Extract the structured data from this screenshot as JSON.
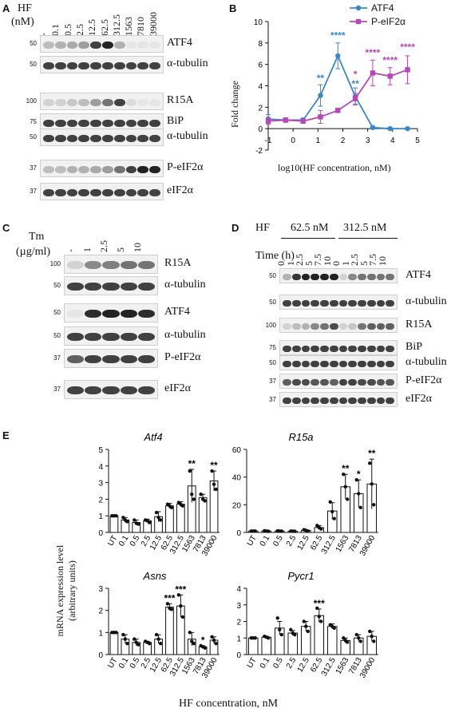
{
  "panels": {
    "A": "A",
    "B": "B",
    "C": "C",
    "D": "D",
    "E": "E"
  },
  "panelA": {
    "hf_label": "HF",
    "unit_label": "(nM)",
    "lanes": [
      "-",
      "0.1",
      "0.5",
      "2.5",
      "12.5",
      "62.5",
      "312.5",
      "1563",
      "7810",
      "39000"
    ],
    "blots": [
      {
        "name": "ATF4",
        "mw": "50",
        "bands": [
          0.25,
          0.3,
          0.35,
          0.4,
          0.85,
          1.0,
          0.3,
          0.05,
          0.05,
          0.05
        ]
      },
      {
        "name": "α-tubulin",
        "mw": "50",
        "bands": [
          0.85,
          0.85,
          0.85,
          0.85,
          0.85,
          0.85,
          0.85,
          0.85,
          0.85,
          0.85
        ]
      },
      {
        "name": "R15A",
        "mw": "100",
        "bands": [
          0.15,
          0.15,
          0.2,
          0.25,
          0.4,
          0.6,
          0.85,
          0.1,
          0.05,
          0.05
        ]
      },
      {
        "name": "BiP",
        "mw": "75",
        "bands": [
          0.85,
          0.85,
          0.85,
          0.85,
          0.85,
          0.85,
          0.85,
          0.85,
          0.85,
          0.85
        ]
      },
      {
        "name": "α-tubulin",
        "mw": "50",
        "bands": [
          0.85,
          0.85,
          0.85,
          0.85,
          0.85,
          0.85,
          0.85,
          0.85,
          0.85,
          0.85
        ]
      },
      {
        "name": "P-eIF2α",
        "mw": "37",
        "bands": [
          0.25,
          0.25,
          0.3,
          0.3,
          0.35,
          0.4,
          0.6,
          0.85,
          1.0,
          1.0
        ]
      },
      {
        "name": "eIF2α",
        "mw": "37",
        "bands": [
          0.85,
          0.85,
          0.85,
          0.85,
          0.85,
          0.85,
          0.85,
          0.85,
          0.85,
          0.85
        ]
      }
    ]
  },
  "panelC": {
    "tm_label": "Tm",
    "unit_label": "(µg/ml)",
    "lanes": [
      "-",
      "1",
      "2.5",
      "5",
      "10"
    ],
    "blots": [
      {
        "name": "R15A",
        "mw": "100",
        "bands": [
          0.15,
          0.5,
          0.55,
          0.6,
          0.6
        ]
      },
      {
        "name": "α-tubulin",
        "mw": "50",
        "bands": [
          0.85,
          0.85,
          0.85,
          0.85,
          0.85
        ]
      },
      {
        "name": "ATF4",
        "mw": "50",
        "bands": [
          0.05,
          0.95,
          1.0,
          1.0,
          0.95
        ]
      },
      {
        "name": "α-tubulin",
        "mw": "50",
        "bands": [
          0.85,
          0.85,
          0.85,
          0.85,
          0.85
        ]
      },
      {
        "name": "P-eIF2α",
        "mw": "37",
        "bands": [
          0.7,
          0.85,
          0.85,
          0.85,
          0.85
        ]
      },
      {
        "name": "eIF2α",
        "mw": "37",
        "bands": [
          0.85,
          0.85,
          0.85,
          0.85,
          0.85
        ]
      }
    ]
  },
  "panelD": {
    "hf_label": "HF",
    "group1": "62.5 nM",
    "group2": "312.5 nM",
    "time_label": "Time (h)",
    "lanes": [
      "0",
      "1",
      "2.5",
      "5",
      "7.5",
      "10",
      "0",
      "1",
      "2.5",
      "5",
      "7.5",
      "10"
    ],
    "blots": [
      {
        "name": "ATF4",
        "mw": "50",
        "bands": [
          0.3,
          0.9,
          1.0,
          1.0,
          1.0,
          1.0,
          0.15,
          0.5,
          0.6,
          0.6,
          0.6,
          0.6
        ]
      },
      {
        "name": "α-tubulin",
        "mw": "50",
        "bands": [
          0.85,
          0.85,
          0.85,
          0.85,
          0.85,
          0.85,
          0.85,
          0.85,
          0.85,
          0.85,
          0.85,
          0.85
        ]
      },
      {
        "name": "R15A",
        "mw": "100",
        "bands": [
          0.15,
          0.25,
          0.3,
          0.5,
          0.6,
          0.8,
          0.15,
          0.2,
          0.6,
          0.7,
          0.7,
          0.7
        ]
      },
      {
        "name": "BiP",
        "mw": "75",
        "bands": [
          0.85,
          0.85,
          0.85,
          0.85,
          0.85,
          0.85,
          0.85,
          0.85,
          0.85,
          0.85,
          0.85,
          0.85
        ]
      },
      {
        "name": "α-tubulin",
        "mw": "50",
        "bands": [
          0.85,
          0.85,
          0.85,
          0.85,
          0.85,
          0.85,
          0.85,
          0.85,
          0.85,
          0.85,
          0.85,
          0.85
        ]
      },
      {
        "name": "P-eIF2α",
        "mw": "37",
        "bands": [
          0.7,
          0.8,
          0.8,
          0.75,
          0.75,
          0.7,
          0.85,
          0.85,
          0.8,
          0.8,
          0.75,
          0.75
        ]
      },
      {
        "name": "eIF2α",
        "mw": "37",
        "bands": [
          0.85,
          0.85,
          0.85,
          0.85,
          0.85,
          0.85,
          0.85,
          0.85,
          0.85,
          0.85,
          0.85,
          0.85
        ]
      }
    ]
  },
  "panelE": {
    "ylabel": "mRNA expression level\n(arbitrary units)",
    "xlabel": "HF concentration, nM"
  },
  "chart_data": [
    {
      "type": "line",
      "panel": "B",
      "xlabel": "log10(HF concentration, nM)",
      "ylabel": "Fold change",
      "xlim": [
        -1,
        5
      ],
      "ylim": [
        -2,
        10
      ],
      "xticks": [
        "-1",
        "0",
        "1",
        "2",
        "3",
        "4",
        "5"
      ],
      "yticks": [
        "-2",
        "0",
        "2",
        "4",
        "6",
        "8",
        "10"
      ],
      "legend_position": "top-right",
      "series": [
        {
          "name": "ATF4",
          "color": "#3a86c8",
          "x": [
            -1,
            -0.3,
            0.4,
            1.1,
            1.8,
            2.5,
            3.2,
            3.9,
            4.6
          ],
          "y": [
            0.9,
            0.8,
            0.8,
            3.1,
            6.8,
            3.0,
            0.1,
            0.0,
            0.0
          ],
          "err": [
            0.4,
            0.2,
            0.2,
            1.0,
            1.2,
            0.8,
            0.1,
            0.1,
            0.1
          ]
        },
        {
          "name": "P-eIF2α",
          "color": "#b548b3",
          "x": [
            -1,
            -0.3,
            0.4,
            1.1,
            1.8,
            2.5,
            3.2,
            3.9,
            4.6
          ],
          "y": [
            0.7,
            0.8,
            0.7,
            1.1,
            1.7,
            2.8,
            5.2,
            4.9,
            5.5
          ],
          "err": [
            0.3,
            0.2,
            0.2,
            0.6,
            0.2,
            0.5,
            1.2,
            0.8,
            1.3
          ]
        }
      ],
      "annotations": [
        {
          "text": "**",
          "series": "ATF4",
          "x": 1.1,
          "y": 4.4
        },
        {
          "text": "****",
          "series": "ATF4",
          "x": 1.8,
          "y": 8.4
        },
        {
          "text": "**",
          "series": "ATF4",
          "x": 2.5,
          "y": 3.9
        },
        {
          "text": "*",
          "series": "P-eIF2α",
          "x": 2.5,
          "y": 4.8
        },
        {
          "text": "****",
          "series": "P-eIF2α",
          "x": 3.2,
          "y": 6.8
        },
        {
          "text": "****",
          "series": "P-eIF2α",
          "x": 3.9,
          "y": 6.1
        },
        {
          "text": "****",
          "series": "P-eIF2α",
          "x": 4.6,
          "y": 7.3
        }
      ]
    },
    {
      "type": "bar",
      "panel": "E",
      "title": "Atf4",
      "categories": [
        "UT",
        "0.1",
        "0.5",
        "2.5",
        "12.5",
        "62.5",
        "312.5",
        "1563",
        "7813",
        "39000"
      ],
      "values": [
        1.0,
        0.75,
        0.6,
        0.7,
        0.95,
        1.6,
        1.7,
        2.8,
        2.1,
        3.1
      ],
      "err": [
        0.05,
        0.15,
        0.15,
        0.1,
        0.3,
        0.15,
        0.15,
        1.0,
        0.2,
        0.6
      ],
      "points": [
        [
          1.0,
          1.0,
          1.0
        ],
        [
          0.9,
          0.75,
          0.65
        ],
        [
          0.75,
          0.55,
          0.5
        ],
        [
          0.75,
          0.7,
          0.6
        ],
        [
          1.2,
          0.9,
          0.75
        ],
        [
          1.7,
          1.6,
          1.5
        ],
        [
          1.8,
          1.7,
          1.6
        ],
        [
          3.7,
          2.3,
          2.0
        ],
        [
          2.3,
          2.0,
          1.9
        ],
        [
          3.7,
          2.9,
          2.6
        ]
      ],
      "ylim": [
        0,
        5
      ],
      "yticks": [
        "0",
        "1",
        "2",
        "3",
        "4",
        "5"
      ],
      "significance": [
        "",
        "",
        "",
        "",
        "",
        "",
        "",
        "**",
        "",
        "**"
      ]
    },
    {
      "type": "bar",
      "panel": "E",
      "title": "R15a",
      "categories": [
        "UT",
        "0.1",
        "0.5",
        "2.5",
        "12.5",
        "62.5",
        "312.5",
        "1563",
        "7813",
        "39000"
      ],
      "values": [
        1.0,
        1.0,
        1.0,
        0.9,
        1.5,
        3.5,
        15.5,
        33.0,
        28.0,
        35.0
      ],
      "err": [
        0.2,
        0.2,
        0.2,
        0.2,
        0.5,
        1.5,
        6.0,
        9.0,
        10.0,
        18.0
      ],
      "points": [
        [
          1.0,
          1.0,
          1.0
        ],
        [
          1.2,
          1.0,
          0.8
        ],
        [
          1.1,
          1.0,
          0.9
        ],
        [
          1.0,
          0.9,
          0.8
        ],
        [
          2.0,
          1.5,
          1.0
        ],
        [
          5.0,
          3.5,
          2.5
        ],
        [
          22.0,
          15.0,
          10.0
        ],
        [
          42.0,
          33.0,
          24.0
        ],
        [
          38.0,
          28.0,
          18.0
        ],
        [
          50.0,
          35.0,
          20.0
        ]
      ],
      "ylim": [
        0,
        60
      ],
      "yticks": [
        "0",
        "20",
        "40",
        "60"
      ],
      "significance": [
        "",
        "",
        "",
        "",
        "",
        "",
        "",
        "**",
        "*",
        "**"
      ]
    },
    {
      "type": "bar",
      "panel": "E",
      "title": "Asns",
      "categories": [
        "UT",
        "0.1",
        "0.5",
        "2.5",
        "12.5",
        "62.5",
        "312.5",
        "1563",
        "7813",
        "39000"
      ],
      "values": [
        1.0,
        0.7,
        0.55,
        0.55,
        0.7,
        2.15,
        2.2,
        0.7,
        0.35,
        0.65
      ],
      "err": [
        0.03,
        0.2,
        0.15,
        0.05,
        0.2,
        0.15,
        0.5,
        0.3,
        0.05,
        0.15
      ],
      "points": [
        [
          1.0,
          1.0,
          1.0
        ],
        [
          0.9,
          0.7,
          0.5
        ],
        [
          0.7,
          0.55,
          0.45
        ],
        [
          0.6,
          0.55,
          0.5
        ],
        [
          0.9,
          0.7,
          0.5
        ],
        [
          2.3,
          2.1,
          2.05
        ],
        [
          2.7,
          2.2,
          1.7
        ],
        [
          1.0,
          0.6,
          0.5
        ],
        [
          0.4,
          0.35,
          0.3
        ],
        [
          0.8,
          0.65,
          0.5
        ]
      ],
      "ylim": [
        0,
        3
      ],
      "yticks": [
        "0",
        "1",
        "2",
        "3"
      ],
      "significance": [
        "",
        "",
        "",
        "",
        "",
        "***",
        "***",
        "",
        "*",
        ""
      ]
    },
    {
      "type": "bar",
      "panel": "E",
      "title": "Pycr1",
      "categories": [
        "UT",
        "0.1",
        "0.5",
        "2.5",
        "12.5",
        "62.5",
        "312.5",
        "1563",
        "7813",
        "39000"
      ],
      "values": [
        1.0,
        1.05,
        1.6,
        1.3,
        1.7,
        2.35,
        1.7,
        0.85,
        1.0,
        1.1
      ],
      "err": [
        0.03,
        0.05,
        0.4,
        0.15,
        0.3,
        0.4,
        0.15,
        0.15,
        0.2,
        0.3
      ],
      "points": [
        [
          1.0,
          1.0,
          1.0
        ],
        [
          1.1,
          1.05,
          1.0
        ],
        [
          2.2,
          1.5,
          1.2
        ],
        [
          1.5,
          1.3,
          1.2
        ],
        [
          2.0,
          1.7,
          1.4
        ],
        [
          2.8,
          2.3,
          2.0
        ],
        [
          1.8,
          1.7,
          1.6
        ],
        [
          1.0,
          0.85,
          0.75
        ],
        [
          1.2,
          1.0,
          0.8
        ],
        [
          1.4,
          1.1,
          0.8
        ]
      ],
      "ylim": [
        0,
        4
      ],
      "yticks": [
        "0",
        "1",
        "2",
        "3",
        "4"
      ],
      "significance": [
        "",
        "",
        "",
        "",
        "",
        "***",
        "",
        "",
        "",
        ""
      ]
    }
  ]
}
